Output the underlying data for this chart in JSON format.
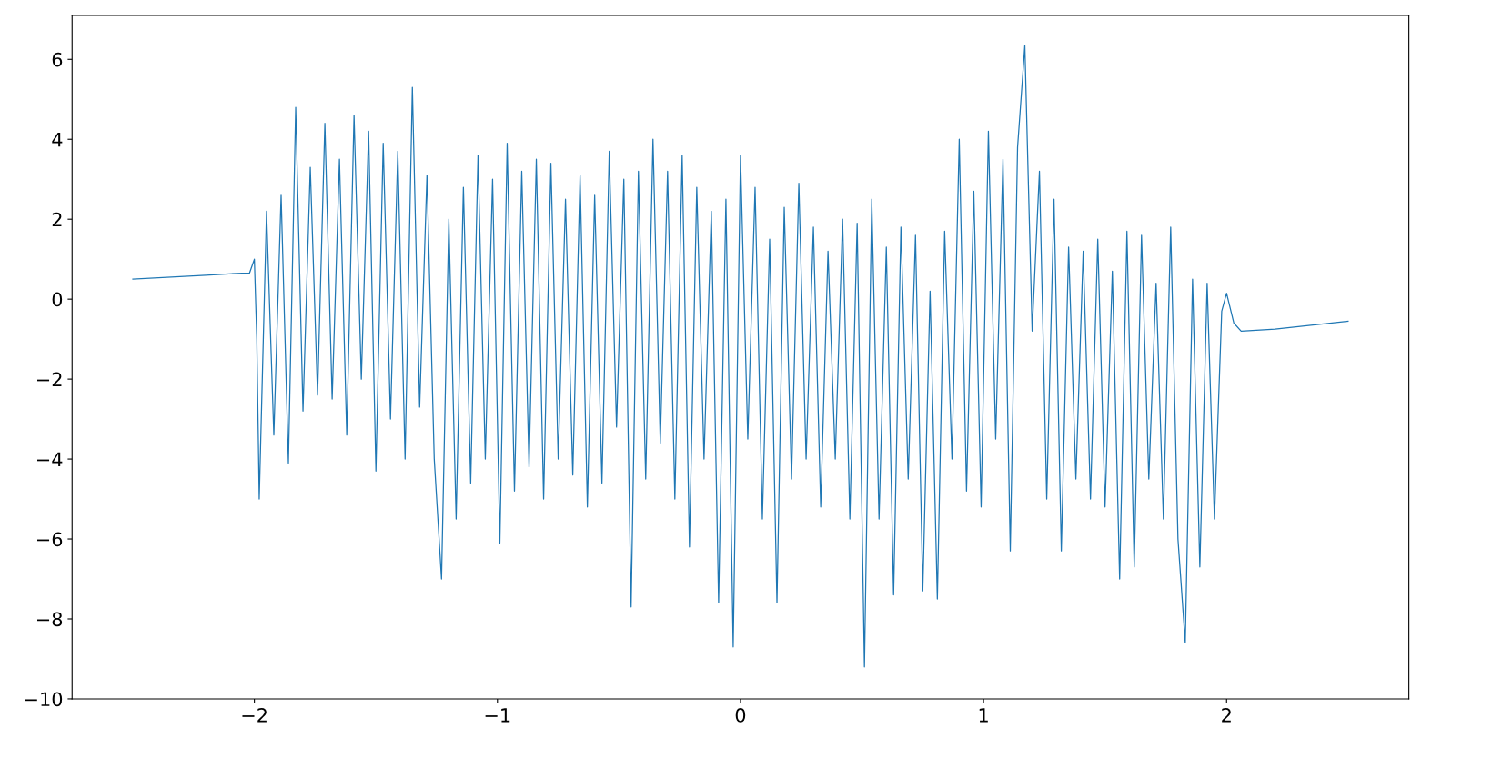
{
  "chart_data": {
    "type": "line",
    "x": [
      -2.5,
      -2.2,
      -2.05,
      -2.02,
      -2.0,
      -1.99,
      -1.98,
      -1.95,
      -1.92,
      -1.89,
      -1.86,
      -1.83,
      -1.8,
      -1.77,
      -1.74,
      -1.71,
      -1.68,
      -1.65,
      -1.62,
      -1.59,
      -1.56,
      -1.53,
      -1.5,
      -1.47,
      -1.44,
      -1.41,
      -1.38,
      -1.35,
      -1.32,
      -1.29,
      -1.26,
      -1.23,
      -1.2,
      -1.17,
      -1.14,
      -1.11,
      -1.08,
      -1.05,
      -1.02,
      -0.99,
      -0.96,
      -0.93,
      -0.9,
      -0.87,
      -0.84,
      -0.81,
      -0.78,
      -0.75,
      -0.72,
      -0.69,
      -0.66,
      -0.63,
      -0.6,
      -0.57,
      -0.54,
      -0.51,
      -0.48,
      -0.45,
      -0.42,
      -0.39,
      -0.36,
      -0.33,
      -0.3,
      -0.27,
      -0.24,
      -0.21,
      -0.18,
      -0.15,
      -0.12,
      -0.09,
      -0.06,
      -0.03,
      0.0,
      0.03,
      0.06,
      0.09,
      0.12,
      0.15,
      0.18,
      0.21,
      0.24,
      0.27,
      0.3,
      0.33,
      0.36,
      0.39,
      0.42,
      0.45,
      0.48,
      0.51,
      0.54,
      0.57,
      0.6,
      0.63,
      0.66,
      0.69,
      0.72,
      0.75,
      0.78,
      0.81,
      0.84,
      0.87,
      0.9,
      0.93,
      0.96,
      0.99,
      1.02,
      1.05,
      1.08,
      1.11,
      1.14,
      1.17,
      1.2,
      1.23,
      1.26,
      1.29,
      1.32,
      1.35,
      1.38,
      1.41,
      1.44,
      1.47,
      1.5,
      1.53,
      1.56,
      1.59,
      1.62,
      1.65,
      1.68,
      1.71,
      1.74,
      1.77,
      1.8,
      1.83,
      1.86,
      1.89,
      1.92,
      1.95,
      1.98,
      2.0,
      2.03,
      2.06,
      2.2,
      2.5
    ],
    "series": [
      {
        "color": "#1f77b4",
        "values": [
          0.5,
          0.6,
          0.65,
          0.65,
          1.0,
          -1.0,
          -5.0,
          2.2,
          -3.4,
          2.6,
          -4.1,
          4.8,
          -2.8,
          3.3,
          -2.4,
          4.4,
          -2.5,
          3.5,
          -3.4,
          4.6,
          -2.0,
          4.2,
          -4.3,
          3.9,
          -3.0,
          3.7,
          -4.0,
          5.3,
          -2.7,
          3.1,
          -4.0,
          -7.0,
          2.0,
          -5.5,
          2.8,
          -4.6,
          3.6,
          -4.0,
          3.0,
          -6.1,
          3.9,
          -4.8,
          3.2,
          -4.2,
          3.5,
          -5.0,
          3.4,
          -4.0,
          2.5,
          -4.4,
          3.1,
          -5.2,
          2.6,
          -4.6,
          3.7,
          -3.2,
          3.0,
          -7.7,
          3.2,
          -4.5,
          4.0,
          -3.6,
          3.2,
          -5.0,
          3.6,
          -6.2,
          2.8,
          -4.0,
          2.2,
          -7.6,
          2.5,
          -8.7,
          3.6,
          -3.5,
          2.8,
          -5.5,
          1.5,
          -7.6,
          2.3,
          -4.5,
          2.9,
          -4.0,
          1.8,
          -5.2,
          1.2,
          -4.0,
          2.0,
          -5.5,
          1.9,
          -9.2,
          2.5,
          -5.5,
          1.3,
          -7.4,
          1.8,
          -4.5,
          1.6,
          -7.3,
          0.2,
          -7.5,
          1.7,
          -4.0,
          4.0,
          -4.8,
          2.7,
          -5.2,
          4.2,
          -3.5,
          3.5,
          -6.3,
          3.8,
          6.35,
          -0.8,
          3.2,
          -5.0,
          2.5,
          -6.3,
          1.3,
          -4.5,
          1.2,
          -5.0,
          1.5,
          -5.2,
          0.7,
          -7.0,
          1.7,
          -6.7,
          1.6,
          -4.5,
          0.4,
          -5.5,
          1.8,
          -6.0,
          -8.6,
          0.5,
          -6.7,
          0.4,
          -5.5,
          -0.3,
          0.15,
          -0.6,
          -0.8,
          -0.75,
          -0.55
        ]
      }
    ],
    "xlim": [
      -2.75,
      2.75
    ],
    "ylim": [
      -10,
      7.1
    ],
    "xticks": [
      {
        "value": -2,
        "label": "−2"
      },
      {
        "value": -1,
        "label": "−1"
      },
      0,
      1,
      2
    ],
    "yticks": [
      {
        "value": -10,
        "label": "−10"
      },
      {
        "value": -8,
        "label": "−8"
      },
      {
        "value": -6,
        "label": "−6"
      },
      {
        "value": -4,
        "label": "−4"
      },
      {
        "value": -2,
        "label": "−2"
      },
      0,
      2,
      4,
      6
    ],
    "grid": false,
    "legend": false
  }
}
